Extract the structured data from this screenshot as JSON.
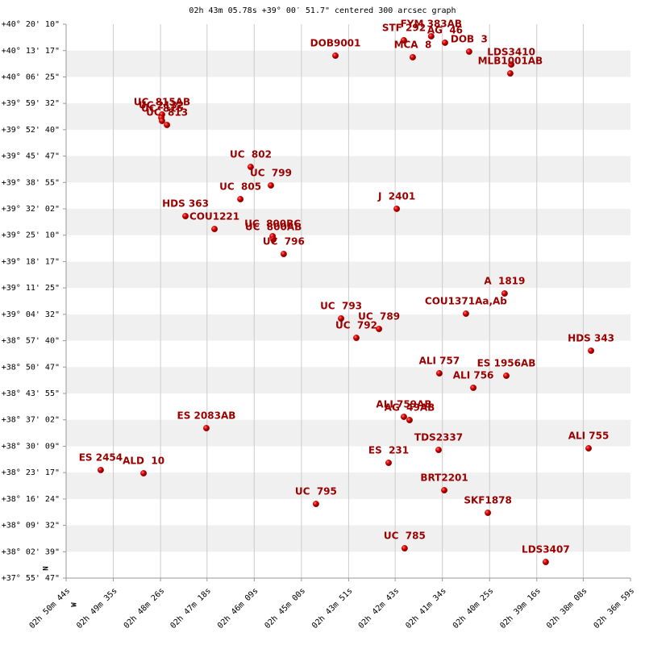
{
  "chart_data": {
    "type": "scatter",
    "title": "02h 43m 05.78s +39° 00′ 51.7\" centered 300 arcsec graph",
    "compass": {
      "north": "N",
      "west": "W"
    },
    "color": "#cc0000",
    "label_color": "#990000",
    "band_color": "#f0f0f0",
    "grid": true,
    "xlim": [
      2.845556,
      2.616389
    ],
    "xticks": [
      {
        "value": 2.845556,
        "label": "02h 50m 44s"
      },
      {
        "value": 2.826389,
        "label": "02h 49m 35s"
      },
      {
        "value": 2.807222,
        "label": "02h 48m 26s"
      },
      {
        "value": 2.788333,
        "label": "02h 47m 18s"
      },
      {
        "value": 2.769167,
        "label": "02h 46m 09s"
      },
      {
        "value": 2.75,
        "label": "02h 45m 00s"
      },
      {
        "value": 2.730833,
        "label": "02h 43m 51s"
      },
      {
        "value": 2.711944,
        "label": "02h 42m 43s"
      },
      {
        "value": 2.692778,
        "label": "02h 41m 34s"
      },
      {
        "value": 2.673611,
        "label": "02h 40m 25s"
      },
      {
        "value": 2.654444,
        "label": "02h 39m 16s"
      },
      {
        "value": 2.635556,
        "label": "02h 38m 08s"
      },
      {
        "value": 2.616389,
        "label": "02h 36m 59s"
      }
    ],
    "ylim": [
      37.92972,
      40.33611
    ],
    "yticks": [
      {
        "value": 40.33611,
        "label": "+40° 20' 10\""
      },
      {
        "value": 40.22139,
        "label": "+40° 13' 17\""
      },
      {
        "value": 40.10694,
        "label": "+40° 06' 25\""
      },
      {
        "value": 39.99222,
        "label": "+39° 59' 32\""
      },
      {
        "value": 39.87778,
        "label": "+39° 52' 40\""
      },
      {
        "value": 39.76306,
        "label": "+39° 45' 47\""
      },
      {
        "value": 39.64861,
        "label": "+39° 38' 55\""
      },
      {
        "value": 39.53389,
        "label": "+39° 32' 02\""
      },
      {
        "value": 39.41944,
        "label": "+39° 25' 10\""
      },
      {
        "value": 39.30472,
        "label": "+39° 18' 17\""
      },
      {
        "value": 39.19028,
        "label": "+39° 11' 25\""
      },
      {
        "value": 39.07556,
        "label": "+39° 04' 32\""
      },
      {
        "value": 38.96111,
        "label": "+38° 57' 40\""
      },
      {
        "value": 38.84639,
        "label": "+38° 50' 47\""
      },
      {
        "value": 38.73194,
        "label": "+38° 43' 55\""
      },
      {
        "value": 38.61722,
        "label": "+38° 37' 02\""
      },
      {
        "value": 38.5025,
        "label": "+38° 30' 09\""
      },
      {
        "value": 38.38806,
        "label": "+38° 23' 17\""
      },
      {
        "value": 38.27333,
        "label": "+38° 16' 24\""
      },
      {
        "value": 38.15889,
        "label": "+38° 09' 32\""
      },
      {
        "value": 38.04417,
        "label": "+38° 02' 39\""
      },
      {
        "value": 37.92972,
        "label": "+37° 55' 47\""
      }
    ],
    "point_labels": [
      "DOB9001",
      "STF 292",
      "FYM 383AB",
      "AG  46",
      "MCA  8",
      "DOB  3",
      "LDS3410",
      "MLB1001AB",
      "UC  815AB",
      "UC 2132",
      "UC  816",
      "UC  813",
      "UC  802",
      "UC  799",
      "UC  805",
      "HDS 363",
      "COU1221",
      "UC  800BC",
      "UC  800AB",
      "UC  796",
      "J  2401",
      "A  1819",
      "COU1371Aa,Ab",
      "UC  793",
      "UC  789",
      "UC  792",
      "HDS 343",
      "ALI 757",
      "ES 1956AB",
      "ALI 756",
      "ALI 759AB",
      "AG  49AB",
      "ES 2083AB",
      "TDS2337",
      "ALI 755",
      "ES  231",
      "ES 2454",
      "ALD  10",
      "BRT2201",
      "SKF1878",
      "UC  795",
      "UC  785",
      "LDS3407"
    ],
    "x": [
      2.7362,
      2.7084,
      2.6973,
      2.6917,
      2.7048,
      2.6819,
      2.6648,
      2.6652,
      2.8066,
      2.8069,
      2.8066,
      2.8046,
      2.7706,
      2.7624,
      2.7748,
      2.7971,
      2.7853,
      2.7617,
      2.7614,
      2.7572,
      2.7113,
      2.6675,
      2.6832,
      2.7339,
      2.7185,
      2.7277,
      2.6324,
      2.694,
      2.6668,
      2.6802,
      2.7084,
      2.7061,
      2.7886,
      2.6943,
      2.6334,
      2.7146,
      2.8315,
      2.8141,
      2.692,
      2.6743,
      2.7441,
      2.7081,
      2.6508
    ],
    "values": [
      40.1995,
      40.2661,
      40.2836,
      40.2556,
      40.1925,
      40.217,
      40.161,
      40.1224,
      39.9438,
      39.9298,
      39.9158,
      39.8983,
      39.7161,
      39.6356,
      39.576,
      39.5024,
      39.4464,
      39.4149,
      39.4009,
      39.3378,
      39.534,
      39.1662,
      39.0786,
      39.0576,
      39.0121,
      38.9735,
      38.9175,
      38.8194,
      38.8089,
      38.7564,
      38.6303,
      38.6162,
      38.5812,
      38.4866,
      38.4936,
      38.4306,
      38.3991,
      38.3851,
      38.3115,
      38.2134,
      38.2519,
      38.0593,
      37.9997
    ]
  }
}
